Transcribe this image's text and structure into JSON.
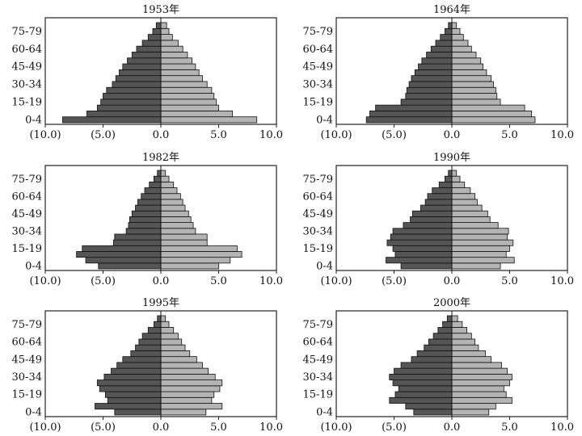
{
  "colors": {
    "male": "#555555",
    "female": "#b4b4b4",
    "axis": "#222222",
    "outline": "#111111"
  },
  "chart_data": [
    {
      "type": "bar",
      "title": "1953年",
      "male": [
        8.5,
        6.4,
        5.5,
        5.2,
        5.0,
        4.7,
        4.2,
        3.9,
        3.6,
        3.3,
        2.9,
        2.5,
        2.1,
        1.6,
        1.1,
        0.7,
        0.4
      ],
      "female": [
        8.3,
        6.2,
        5.0,
        4.8,
        4.6,
        4.4,
        4.0,
        3.6,
        3.3,
        3.0,
        2.7,
        2.3,
        1.9,
        1.5,
        1.0,
        0.7,
        0.5
      ],
      "xlim": [
        -10,
        10
      ]
    },
    {
      "type": "bar",
      "title": "1964年",
      "male": [
        7.4,
        7.1,
        6.6,
        4.4,
        4.0,
        3.9,
        3.7,
        3.5,
        3.2,
        2.9,
        2.6,
        2.2,
        1.8,
        1.4,
        1.0,
        0.6,
        0.3
      ],
      "female": [
        7.2,
        6.9,
        6.3,
        4.2,
        3.9,
        3.8,
        3.6,
        3.4,
        3.0,
        2.7,
        2.5,
        2.1,
        1.7,
        1.4,
        1.0,
        0.7,
        0.4
      ],
      "xlim": [
        -10,
        10
      ]
    },
    {
      "type": "bar",
      "title": "1982年",
      "male": [
        5.4,
        6.5,
        7.3,
        6.8,
        4.1,
        4.0,
        3.0,
        2.8,
        2.7,
        2.5,
        2.2,
        2.0,
        1.7,
        1.4,
        1.0,
        0.6,
        0.3
      ],
      "female": [
        5.0,
        6.0,
        7.0,
        6.6,
        4.0,
        4.0,
        3.0,
        2.8,
        2.6,
        2.4,
        2.1,
        1.9,
        1.7,
        1.4,
        1.1,
        0.7,
        0.4
      ],
      "xlim": [
        -10,
        10
      ]
    },
    {
      "type": "bar",
      "title": "1990年",
      "male": [
        4.4,
        5.7,
        4.9,
        5.1,
        5.6,
        5.3,
        5.1,
        4.2,
        3.6,
        3.4,
        2.7,
        2.3,
        2.1,
        1.7,
        1.1,
        0.6,
        0.3
      ],
      "female": [
        4.2,
        5.4,
        4.7,
        5.0,
        5.3,
        4.8,
        4.9,
        4.0,
        3.3,
        3.1,
        2.6,
        2.2,
        2.0,
        1.6,
        1.1,
        0.7,
        0.4
      ],
      "xlim": [
        -10,
        10
      ]
    },
    {
      "type": "bar",
      "title": "1995年",
      "male": [
        4.0,
        5.7,
        4.6,
        4.8,
        5.3,
        5.5,
        4.9,
        4.3,
        3.8,
        3.3,
        2.6,
        2.2,
        1.9,
        1.6,
        1.1,
        0.6,
        0.3
      ],
      "female": [
        3.9,
        5.3,
        4.4,
        4.6,
        5.1,
        5.3,
        4.7,
        4.1,
        3.6,
        3.1,
        2.5,
        2.1,
        1.8,
        1.5,
        1.1,
        0.7,
        0.4
      ],
      "xlim": [
        -10,
        10
      ]
    },
    {
      "type": "bar",
      "title": "2000年",
      "male": [
        3.3,
        4.0,
        5.4,
        4.9,
        4.6,
        5.1,
        5.4,
        5.0,
        4.4,
        3.5,
        3.0,
        2.4,
        2.0,
        1.6,
        1.2,
        0.8,
        0.4
      ],
      "female": [
        3.2,
        3.8,
        5.2,
        4.7,
        4.5,
        5.0,
        5.2,
        4.8,
        4.3,
        3.4,
        2.9,
        2.3,
        2.0,
        1.7,
        1.3,
        0.9,
        0.5
      ],
      "xlim": [
        -10,
        10
      ]
    }
  ],
  "y_tick_labels": [
    "0-4",
    "15-19",
    "30-34",
    "45-49",
    "60-64",
    "75-79"
  ],
  "x_tick_labels": [
    "(10.0)",
    "(5.0)",
    "0.0",
    "5.0",
    "10.0"
  ]
}
